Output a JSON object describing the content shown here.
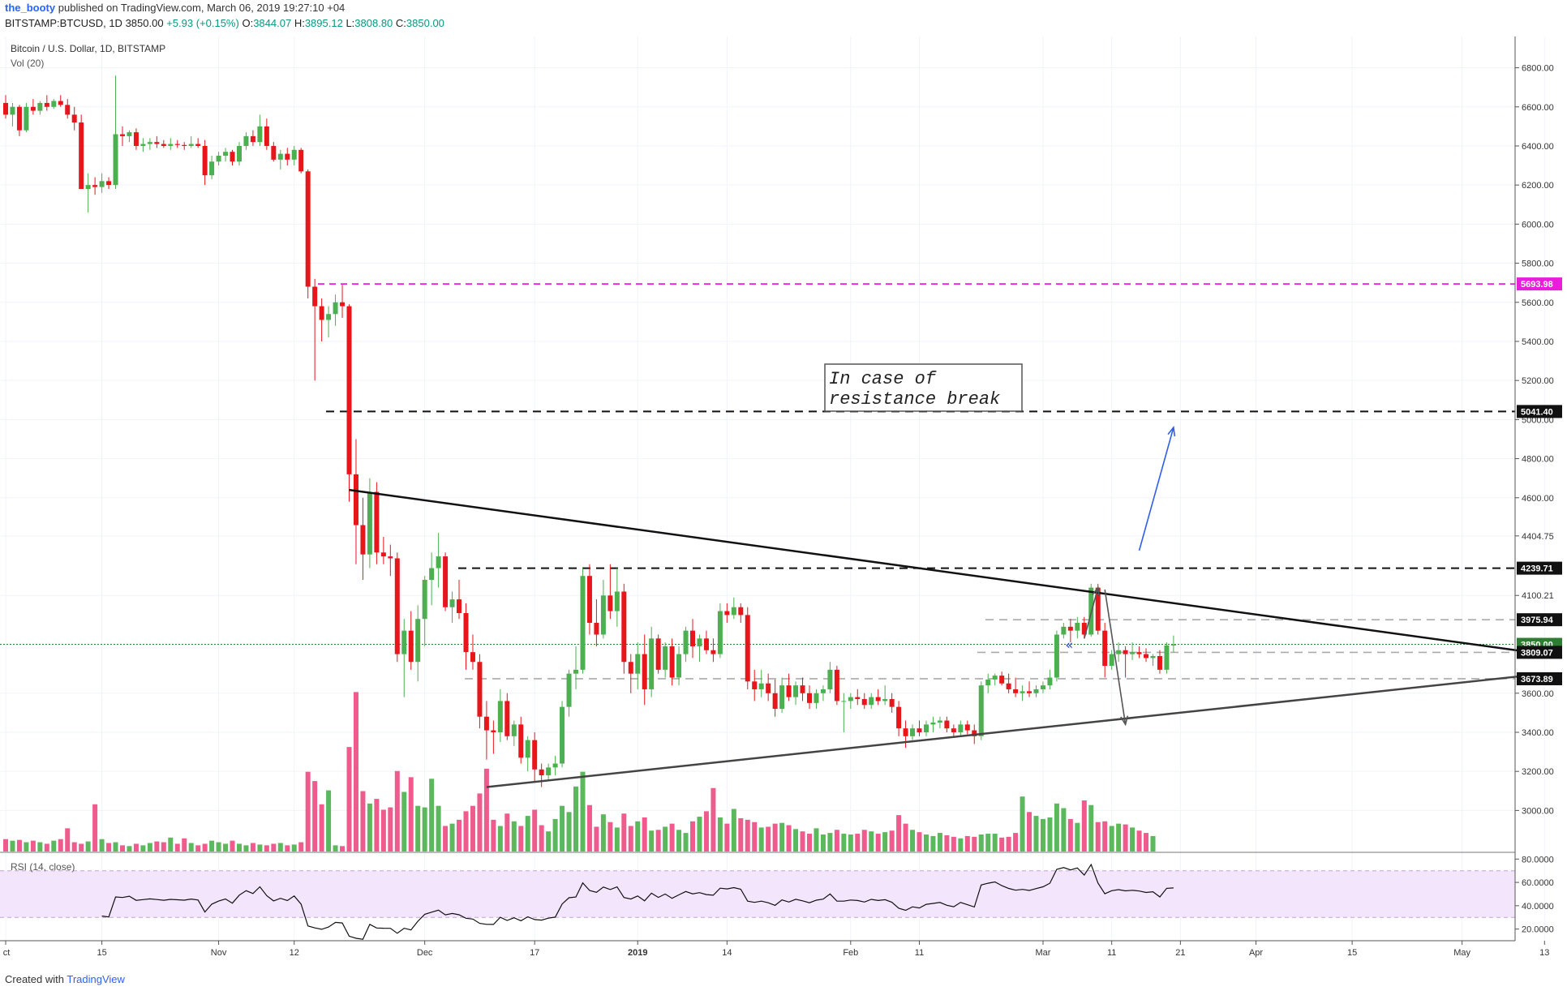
{
  "header": {
    "author": "the_booty",
    "published": "published on TradingView.com, March 06, 2019 19:27:10 +04",
    "symbol_line": "BITSTAMP:BTCUSD, 1D",
    "last": "3850.00",
    "change": "+5.93 (+0.15%)",
    "o_label": "O:",
    "o_value": "3844.07",
    "h_label": "H:",
    "h_value": "3895.12",
    "l_label": "L:",
    "l_value": "3808.80",
    "c_label": "C:",
    "c_value": "3850.00"
  },
  "legend": {
    "series_title": "Bitcoin / U.S. Dollar, 1D, BITSTAMP",
    "volume_title": "Vol (20)",
    "rsi_title": "RSI (14, close)"
  },
  "footer": {
    "created_with": "Created with",
    "brand": "TradingView"
  },
  "colors": {
    "up": "#4caf50",
    "down": "#e8151b",
    "vol_up": "#5cb85c",
    "vol_down": "#ef5b8c",
    "magenta": "#e91edc",
    "rsi_band": "#f3e5fc",
    "trend": "#222222",
    "blue_arrow": "#2f5fe8"
  },
  "chart_data": {
    "type": "candlestick",
    "title": "Bitcoin / U.S. Dollar, 1D, BITSTAMP",
    "y_axis": {
      "ylim": [
        2790,
        6960
      ],
      "ticks": [
        3000,
        3200,
        3400,
        3600,
        4100.21,
        4404.75,
        4600,
        4800,
        5000,
        5200,
        5400,
        5600,
        5800,
        6000,
        6200,
        6400,
        6600,
        6800
      ],
      "tick_labels": [
        "3000.00",
        "3200.00",
        "3400.00",
        "3600.00",
        "4100.21",
        "4404.75",
        "4600.00",
        "4800.00",
        "5000.00",
        "5200.00",
        "5400.00",
        "5600.00",
        "5800.00",
        "6000.00",
        "6200.00",
        "6400.00",
        "6600.00",
        "6800.00"
      ]
    },
    "x_axis": {
      "labels": [
        "ct",
        "15",
        "Nov",
        "12",
        "Dec",
        "17",
        "2019",
        "14",
        "Feb",
        "11",
        "Mar",
        "11",
        "21",
        "Apr",
        "15",
        "May",
        "13"
      ],
      "label_days": [
        "2018-10-01",
        "2018-10-15",
        "2018-11-01",
        "2018-11-12",
        "2018-12-01",
        "2018-12-17",
        "2019-01-01",
        "2019-01-14",
        "2019-02-01",
        "2019-02-11",
        "2019-03-01",
        "2019-03-11",
        "2019-03-21",
        "2019-04-01",
        "2019-04-15",
        "2019-05-01",
        "2019-05-13"
      ],
      "bold_labels": [
        "2019"
      ]
    },
    "candles": [
      [
        6620,
        6660,
        6540,
        6560
      ],
      [
        6560,
        6620,
        6500,
        6600
      ],
      [
        6600,
        6610,
        6450,
        6480
      ],
      [
        6480,
        6620,
        6470,
        6600
      ],
      [
        6600,
        6640,
        6560,
        6580
      ],
      [
        6580,
        6630,
        6560,
        6620
      ],
      [
        6620,
        6660,
        6580,
        6600
      ],
      [
        6600,
        6640,
        6590,
        6630
      ],
      [
        6630,
        6660,
        6600,
        6610
      ],
      [
        6610,
        6640,
        6540,
        6560
      ],
      [
        6560,
        6600,
        6480,
        6520
      ],
      [
        6520,
        6560,
        6200,
        6180
      ],
      [
        6180,
        6260,
        6060,
        6200
      ],
      [
        6200,
        6240,
        6150,
        6190
      ],
      [
        6190,
        6260,
        6160,
        6220
      ],
      [
        6220,
        6240,
        6180,
        6200
      ],
      [
        6200,
        6760,
        6180,
        6460
      ],
      [
        6460,
        6500,
        6400,
        6450
      ],
      [
        6450,
        6480,
        6420,
        6470
      ],
      [
        6470,
        6490,
        6380,
        6400
      ],
      [
        6400,
        6440,
        6370,
        6410
      ],
      [
        6410,
        6440,
        6380,
        6420
      ],
      [
        6420,
        6450,
        6390,
        6410
      ],
      [
        6410,
        6430,
        6390,
        6400
      ],
      [
        6400,
        6440,
        6380,
        6410
      ],
      [
        6410,
        6430,
        6390,
        6405
      ],
      [
        6405,
        6420,
        6380,
        6400
      ],
      [
        6400,
        6450,
        6390,
        6410
      ],
      [
        6410,
        6440,
        6390,
        6400
      ],
      [
        6400,
        6430,
        6200,
        6250
      ],
      [
        6250,
        6350,
        6230,
        6320
      ],
      [
        6320,
        6370,
        6300,
        6350
      ],
      [
        6350,
        6390,
        6320,
        6370
      ],
      [
        6370,
        6380,
        6300,
        6320
      ],
      [
        6320,
        6420,
        6300,
        6400
      ],
      [
        6400,
        6470,
        6380,
        6450
      ],
      [
        6450,
        6480,
        6400,
        6420
      ],
      [
        6420,
        6560,
        6400,
        6500
      ],
      [
        6500,
        6540,
        6380,
        6400
      ],
      [
        6400,
        6420,
        6320,
        6330
      ],
      [
        6330,
        6380,
        6280,
        6360
      ],
      [
        6360,
        6390,
        6300,
        6330
      ],
      [
        6330,
        6400,
        6300,
        6380
      ],
      [
        6380,
        6390,
        6260,
        6270
      ],
      [
        6270,
        6280,
        5620,
        5680
      ],
      [
        5680,
        5720,
        5200,
        5580
      ],
      [
        5580,
        5620,
        5400,
        5510
      ],
      [
        5510,
        5580,
        5420,
        5540
      ],
      [
        5540,
        5640,
        5480,
        5600
      ],
      [
        5600,
        5690,
        5520,
        5580
      ],
      [
        5580,
        5590,
        4580,
        4720
      ],
      [
        4720,
        4900,
        4260,
        4460
      ],
      [
        4460,
        4600,
        4180,
        4310
      ],
      [
        4310,
        4700,
        4240,
        4630
      ],
      [
        4630,
        4680,
        4260,
        4320
      ],
      [
        4320,
        4400,
        4260,
        4300
      ],
      [
        4300,
        4360,
        4200,
        4290
      ],
      [
        4290,
        4320,
        3760,
        3800
      ],
      [
        3800,
        3980,
        3580,
        3920
      ],
      [
        3920,
        4020,
        3720,
        3760
      ],
      [
        3760,
        4050,
        3660,
        3980
      ],
      [
        3980,
        4200,
        3840,
        4180
      ],
      [
        4180,
        4320,
        4050,
        4240
      ],
      [
        4240,
        4420,
        4140,
        4300
      ],
      [
        4300,
        4320,
        4020,
        4040
      ],
      [
        4040,
        4120,
        3960,
        4080
      ],
      [
        4080,
        4180,
        3980,
        4010
      ],
      [
        4010,
        4060,
        3720,
        3810
      ],
      [
        3810,
        3900,
        3720,
        3760
      ],
      [
        3760,
        3800,
        3420,
        3480
      ],
      [
        3480,
        3560,
        3260,
        3410
      ],
      [
        3410,
        3460,
        3290,
        3400
      ],
      [
        3400,
        3620,
        3350,
        3560
      ],
      [
        3560,
        3600,
        3360,
        3380
      ],
      [
        3380,
        3460,
        3330,
        3440
      ],
      [
        3440,
        3480,
        3240,
        3270
      ],
      [
        3270,
        3380,
        3200,
        3360
      ],
      [
        3360,
        3400,
        3150,
        3210
      ],
      [
        3210,
        3240,
        3120,
        3180
      ],
      [
        3180,
        3240,
        3150,
        3220
      ],
      [
        3220,
        3280,
        3180,
        3240
      ],
      [
        3240,
        3560,
        3220,
        3530
      ],
      [
        3530,
        3720,
        3480,
        3700
      ],
      [
        3700,
        3840,
        3620,
        3720
      ],
      [
        3720,
        4240,
        3700,
        4200
      ],
      [
        4200,
        4260,
        3900,
        3960
      ],
      [
        3960,
        4080,
        3840,
        3900
      ],
      [
        3900,
        4180,
        3880,
        4100
      ],
      [
        4100,
        4260,
        3980,
        4020
      ],
      [
        4020,
        4240,
        3940,
        4120
      ],
      [
        4120,
        4160,
        3700,
        3760
      ],
      [
        3760,
        3800,
        3600,
        3700
      ],
      [
        3700,
        3860,
        3620,
        3800
      ],
      [
        3800,
        3900,
        3540,
        3620
      ],
      [
        3620,
        3940,
        3580,
        3880
      ],
      [
        3880,
        3900,
        3700,
        3720
      ],
      [
        3720,
        3860,
        3680,
        3840
      ],
      [
        3840,
        3880,
        3640,
        3680
      ],
      [
        3680,
        3840,
        3640,
        3800
      ],
      [
        3800,
        3940,
        3760,
        3920
      ],
      [
        3920,
        3980,
        3780,
        3840
      ],
      [
        3840,
        3900,
        3760,
        3880
      ],
      [
        3880,
        3920,
        3800,
        3820
      ],
      [
        3820,
        3880,
        3760,
        3800
      ],
      [
        3800,
        4060,
        3780,
        4020
      ],
      [
        4020,
        4060,
        3960,
        4000
      ],
      [
        4000,
        4090,
        3980,
        4040
      ],
      [
        4040,
        4060,
        3960,
        4000
      ],
      [
        4000,
        4040,
        3620,
        3660
      ],
      [
        3660,
        3720,
        3560,
        3620
      ],
      [
        3620,
        3720,
        3580,
        3650
      ],
      [
        3650,
        3700,
        3560,
        3600
      ],
      [
        3600,
        3670,
        3480,
        3520
      ],
      [
        3520,
        3680,
        3500,
        3640
      ],
      [
        3640,
        3700,
        3560,
        3580
      ],
      [
        3580,
        3660,
        3540,
        3640
      ],
      [
        3640,
        3680,
        3560,
        3600
      ],
      [
        3600,
        3640,
        3520,
        3550
      ],
      [
        3550,
        3620,
        3520,
        3600
      ],
      [
        3600,
        3640,
        3560,
        3620
      ],
      [
        3620,
        3760,
        3600,
        3720
      ],
      [
        3720,
        3740,
        3540,
        3560
      ],
      [
        3560,
        3600,
        3400,
        3560
      ],
      [
        3560,
        3600,
        3520,
        3580
      ],
      [
        3580,
        3620,
        3540,
        3570
      ],
      [
        3570,
        3600,
        3520,
        3540
      ],
      [
        3540,
        3600,
        3520,
        3580
      ],
      [
        3580,
        3620,
        3540,
        3560
      ],
      [
        3560,
        3640,
        3540,
        3570
      ],
      [
        3570,
        3600,
        3500,
        3530
      ],
      [
        3530,
        3560,
        3380,
        3420
      ],
      [
        3420,
        3460,
        3320,
        3380
      ],
      [
        3380,
        3440,
        3360,
        3420
      ],
      [
        3420,
        3460,
        3380,
        3400
      ],
      [
        3400,
        3460,
        3380,
        3440
      ],
      [
        3440,
        3480,
        3400,
        3450
      ],
      [
        3450,
        3480,
        3420,
        3460
      ],
      [
        3460,
        3480,
        3400,
        3420
      ],
      [
        3420,
        3440,
        3380,
        3400
      ],
      [
        3400,
        3460,
        3380,
        3440
      ],
      [
        3440,
        3460,
        3390,
        3410
      ],
      [
        3410,
        3440,
        3340,
        3380
      ],
      [
        3380,
        3660,
        3360,
        3640
      ],
      [
        3640,
        3700,
        3600,
        3670
      ],
      [
        3670,
        3700,
        3640,
        3690
      ],
      [
        3690,
        3710,
        3640,
        3650
      ],
      [
        3650,
        3700,
        3600,
        3620
      ],
      [
        3620,
        3680,
        3580,
        3600
      ],
      [
        3600,
        3640,
        3560,
        3610
      ],
      [
        3610,
        3660,
        3580,
        3600
      ],
      [
        3600,
        3640,
        3580,
        3620
      ],
      [
        3620,
        3660,
        3600,
        3640
      ],
      [
        3640,
        3720,
        3620,
        3680
      ],
      [
        3680,
        3920,
        3660,
        3900
      ],
      [
        3900,
        3960,
        3880,
        3940
      ],
      [
        3940,
        3980,
        3860,
        3920
      ],
      [
        3920,
        3990,
        3880,
        3960
      ],
      [
        3960,
        3990,
        3880,
        3900
      ],
      [
        3900,
        4160,
        3890,
        4140
      ],
      [
        4140,
        4160,
        3900,
        3920
      ],
      [
        3920,
        3960,
        3680,
        3740
      ],
      [
        3740,
        3820,
        3720,
        3800
      ],
      [
        3800,
        3860,
        3760,
        3820
      ],
      [
        3820,
        3840,
        3680,
        3800
      ],
      [
        3800,
        3860,
        3770,
        3810
      ],
      [
        3810,
        3840,
        3780,
        3800
      ],
      [
        3800,
        3830,
        3760,
        3780
      ],
      [
        3780,
        3800,
        3740,
        3790
      ],
      [
        3790,
        3820,
        3700,
        3720
      ],
      [
        3720,
        3860,
        3700,
        3844
      ],
      [
        3844.07,
        3895.12,
        3808.8,
        3850
      ]
    ],
    "volume": {
      "title": "Vol (20)",
      "values": [
        16,
        14,
        15,
        12,
        14,
        12,
        10,
        14,
        16,
        30,
        12,
        10,
        13,
        61,
        16,
        11,
        12,
        8,
        7,
        10,
        8,
        11,
        13,
        12,
        18,
        10,
        17,
        11,
        8,
        10,
        14,
        12,
        10,
        14,
        10,
        8,
        11,
        9,
        8,
        10,
        11,
        8,
        9,
        12,
        103,
        91,
        61,
        79,
        8,
        7,
        135,
        206,
        78,
        62,
        68,
        54,
        57,
        104,
        77,
        96,
        59,
        57,
        94,
        59,
        33,
        36,
        41,
        52,
        59,
        75,
        107,
        41,
        33,
        49,
        39,
        33,
        46,
        54,
        34,
        26,
        42,
        59,
        51,
        84,
        103,
        60,
        32,
        48,
        38,
        31,
        49,
        33,
        39,
        44,
        27,
        28,
        32,
        36,
        28,
        24,
        39,
        45,
        52,
        82,
        44,
        36,
        55,
        43,
        41,
        38,
        31,
        32,
        36,
        37,
        34,
        29,
        26,
        23,
        30,
        22,
        24,
        28,
        23,
        22,
        23,
        28,
        26,
        23,
        25,
        27,
        47,
        36,
        28,
        25,
        22,
        20,
        24,
        21,
        19,
        17,
        20,
        19,
        22,
        23,
        23,
        18,
        19,
        24,
        71,
        51,
        46,
        42,
        44,
        62,
        56,
        42,
        37,
        66,
        60,
        38,
        39,
        33,
        36,
        35,
        31,
        27,
        24,
        20
      ],
      "ylim": [
        0,
        220
      ]
    },
    "rsi": {
      "title": "RSI (14, close)",
      "ylim": [
        10,
        83
      ],
      "upper_band": 70,
      "lower_band": 30,
      "ticks": [
        20,
        40,
        60,
        80
      ],
      "tick_labels": [
        "20.0000",
        "40.0000",
        "60.0000",
        "80.0000"
      ]
    },
    "price_labels": [
      {
        "value": "5693.98",
        "y": 5693.98,
        "style": "magenta"
      },
      {
        "value": "5041.40",
        "y": 5041.4,
        "style": "black"
      },
      {
        "value": "4239.71",
        "y": 4239.71,
        "style": "black"
      },
      {
        "value": "3975.94",
        "y": 3975.94,
        "style": "black"
      },
      {
        "value": "3850.00",
        "y": 3850.0,
        "style": "green"
      },
      {
        "value": "3809.07",
        "y": 3809.07,
        "style": "black"
      },
      {
        "value": "3673.89",
        "y": 3673.89,
        "style": "black"
      }
    ],
    "horizontal_levels": [
      {
        "y": 5693.98,
        "style": "magenta-dash"
      },
      {
        "y": 5041.4,
        "style": "black-dash"
      },
      {
        "y": 4239.71,
        "style": "black-dash"
      },
      {
        "y": 3975.94,
        "style": "grey-dash"
      },
      {
        "y": 3850.0,
        "style": "green-dotted"
      },
      {
        "y": 3809.07,
        "style": "grey-dash"
      },
      {
        "y": 3673.89,
        "style": "grey-dash"
      }
    ],
    "annotation": {
      "text_line1": "In case of",
      "text_line2": "resistance break"
    }
  }
}
